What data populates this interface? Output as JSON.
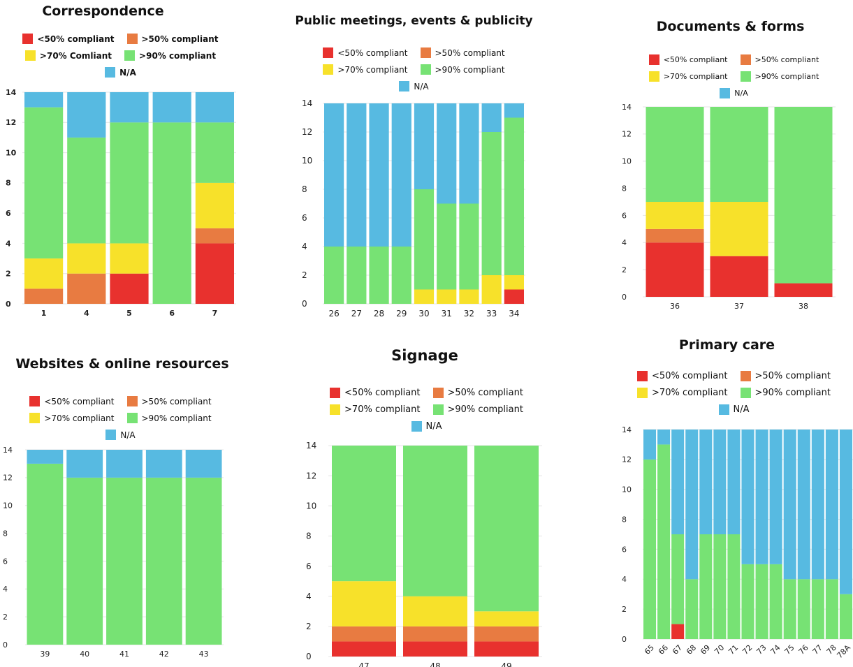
{
  "colors": {
    "lt50": "#e8312e",
    "gt50": "#e87b41",
    "gt70": "#f7e12a",
    "gt90": "#77e274",
    "na": "#57bae1"
  },
  "chart_data": [
    {
      "type": "bar",
      "stacked": true,
      "title": "Correspondence",
      "legend": [
        "<50% compliant",
        ">50% compliant",
        ">70% Comliant",
        ">90% compliant",
        "N/A"
      ],
      "categories": [
        "1",
        "4",
        "5",
        "6",
        "7"
      ],
      "yticks": [
        "0",
        "2",
        "4",
        "6",
        "8",
        "10",
        "12",
        "14"
      ],
      "ylim": [
        0,
        14
      ],
      "series": [
        {
          "name": "<50% compliant",
          "values": [
            0,
            0,
            2,
            0,
            4
          ]
        },
        {
          "name": ">50% compliant",
          "values": [
            1,
            2,
            0,
            0,
            1
          ]
        },
        {
          "name": ">70% Comliant",
          "values": [
            2,
            2,
            2,
            0,
            3
          ]
        },
        {
          "name": ">90% compliant",
          "values": [
            10,
            7,
            8,
            12,
            4
          ]
        },
        {
          "name": "N/A",
          "values": [
            1,
            3,
            2,
            2,
            2
          ]
        }
      ]
    },
    {
      "type": "bar",
      "stacked": true,
      "title": "Public meetings, events & publicity",
      "legend": [
        "<50% compliant",
        ">50% compliant",
        ">70% compliant",
        ">90% compliant",
        "N/A"
      ],
      "categories": [
        "26",
        "27",
        "28",
        "29",
        "30",
        "31",
        "32",
        "33",
        "34"
      ],
      "yticks": [
        "0",
        "2",
        "4",
        "6",
        "8",
        "10",
        "12",
        "14"
      ],
      "ylim": [
        0,
        14
      ],
      "series": [
        {
          "name": "<50% compliant",
          "values": [
            0,
            0,
            0,
            0,
            0,
            0,
            0,
            0,
            1
          ]
        },
        {
          "name": ">50% compliant",
          "values": [
            0,
            0,
            0,
            0,
            0,
            0,
            0,
            0,
            0
          ]
        },
        {
          "name": ">70% compliant",
          "values": [
            0,
            0,
            0,
            0,
            1,
            1,
            1,
            2,
            1
          ]
        },
        {
          "name": ">90% compliant",
          "values": [
            4,
            4,
            4,
            4,
            7,
            6,
            6,
            10,
            11
          ]
        },
        {
          "name": "N/A",
          "values": [
            10,
            10,
            10,
            10,
            6,
            7,
            7,
            2,
            1
          ]
        }
      ]
    },
    {
      "type": "bar",
      "stacked": true,
      "title": "Documents & forms",
      "legend": [
        "<50% compliant",
        ">50% compliant",
        ">70% compliant",
        ">90% compliant",
        "N/A"
      ],
      "categories": [
        "36",
        "37",
        "38"
      ],
      "yticks": [
        "0",
        "2",
        "4",
        "6",
        "8",
        "10",
        "12",
        "14"
      ],
      "ylim": [
        0,
        14
      ],
      "series": [
        {
          "name": "<50% compliant",
          "values": [
            4,
            3,
            1
          ]
        },
        {
          "name": ">50% compliant",
          "values": [
            1,
            0,
            0
          ]
        },
        {
          "name": ">70% compliant",
          "values": [
            2,
            4,
            0
          ]
        },
        {
          "name": ">90% compliant",
          "values": [
            7,
            7,
            13
          ]
        },
        {
          "name": "N/A",
          "values": [
            0,
            0,
            0
          ]
        }
      ]
    },
    {
      "type": "bar",
      "stacked": true,
      "title": "Websites & online resources",
      "legend": [
        "<50% compliant",
        ">50% compliant",
        ">70% compliant",
        ">90% compliant",
        "N/A"
      ],
      "categories": [
        "39",
        "40",
        "41",
        "42",
        "43"
      ],
      "yticks": [
        "0",
        "2",
        "4",
        "6",
        "8",
        "10",
        "12",
        "14"
      ],
      "ylim": [
        0,
        14
      ],
      "series": [
        {
          "name": "<50% compliant",
          "values": [
            0,
            0,
            0,
            0,
            0
          ]
        },
        {
          "name": ">50% compliant",
          "values": [
            0,
            0,
            0,
            0,
            0
          ]
        },
        {
          "name": ">70% compliant",
          "values": [
            0,
            0,
            0,
            0,
            0
          ]
        },
        {
          "name": ">90% compliant",
          "values": [
            13,
            12,
            12,
            12,
            12
          ]
        },
        {
          "name": "N/A",
          "values": [
            1,
            2,
            2,
            2,
            2
          ]
        }
      ]
    },
    {
      "type": "bar",
      "stacked": true,
      "title": "Signage",
      "legend": [
        "<50% compliant",
        ">50% compliant",
        ">70% compliant",
        ">90% compliant",
        "N/A"
      ],
      "categories": [
        "47",
        "48",
        "49"
      ],
      "yticks": [
        "0",
        "2",
        "4",
        "6",
        "8",
        "10",
        "12",
        "14"
      ],
      "ylim": [
        0,
        14
      ],
      "series": [
        {
          "name": "<50% compliant",
          "values": [
            1,
            1,
            1
          ]
        },
        {
          "name": ">50% compliant",
          "values": [
            1,
            1,
            1
          ]
        },
        {
          "name": ">70% compliant",
          "values": [
            3,
            2,
            1
          ]
        },
        {
          "name": ">90% compliant",
          "values": [
            9,
            10,
            11
          ]
        },
        {
          "name": "N/A",
          "values": [
            0,
            0,
            0
          ]
        }
      ]
    },
    {
      "type": "bar",
      "stacked": true,
      "title": "Primary care",
      "legend": [
        "<50% compliant",
        ">50% compliant",
        ">70% compliant",
        ">90% compliant",
        "N/A"
      ],
      "categories": [
        "65",
        "66",
        "67",
        "68",
        "69",
        "70",
        "71",
        "72",
        "73",
        "74",
        "75",
        "76",
        "77",
        "78",
        "78A"
      ],
      "yticks": [
        "0",
        "2",
        "4",
        "6",
        "8",
        "10",
        "12",
        "14"
      ],
      "ylim": [
        0,
        14
      ],
      "series": [
        {
          "name": "<50% compliant",
          "values": [
            0,
            0,
            1,
            0,
            0,
            0,
            0,
            0,
            0,
            0,
            0,
            0,
            0,
            0,
            0
          ]
        },
        {
          "name": ">50% compliant",
          "values": [
            0,
            0,
            0,
            0,
            0,
            0,
            0,
            0,
            0,
            0,
            0,
            0,
            0,
            0,
            0
          ]
        },
        {
          "name": ">70% compliant",
          "values": [
            0,
            0,
            0,
            0,
            0,
            0,
            0,
            0,
            0,
            0,
            0,
            0,
            0,
            0,
            0
          ]
        },
        {
          "name": ">90% compliant",
          "values": [
            12,
            13,
            6,
            4,
            7,
            7,
            7,
            5,
            5,
            5,
            4,
            4,
            4,
            4,
            3
          ]
        },
        {
          "name": "N/A",
          "values": [
            2,
            1,
            7,
            10,
            7,
            7,
            7,
            9,
            9,
            9,
            10,
            10,
            10,
            10,
            11
          ]
        }
      ]
    }
  ]
}
